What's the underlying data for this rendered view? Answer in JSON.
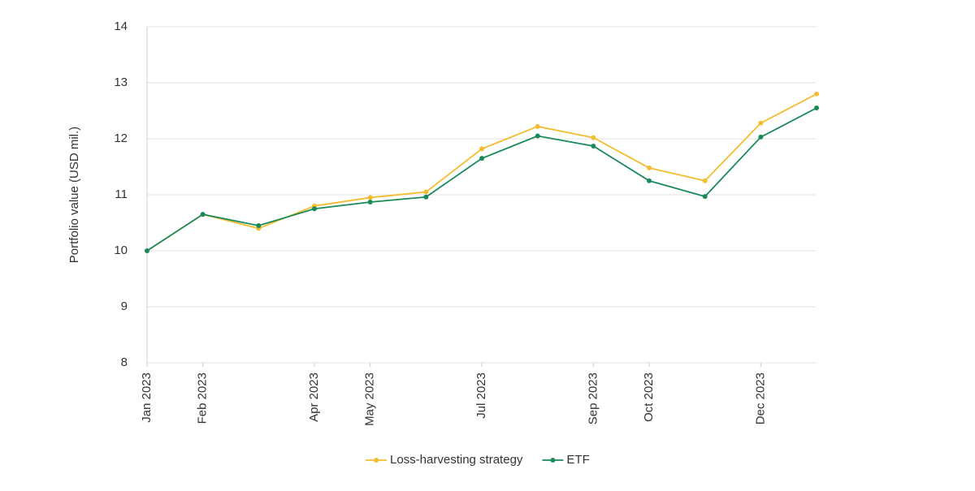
{
  "chart_data": {
    "type": "line",
    "y_label": "Portfolio value (USD mil.)",
    "x": [
      "2023-01",
      "2023-02",
      "2023-03",
      "2023-04",
      "2023-05",
      "2023-06",
      "2023-07",
      "2023-08",
      "2023-09",
      "2023-10",
      "2023-11",
      "2023-12",
      "2024-01"
    ],
    "series": [
      {
        "name": "Loss-harvesting strategy",
        "color": "#f3bd2f",
        "values": [
          10.0,
          10.65,
          10.4,
          10.8,
          10.95,
          11.05,
          11.82,
          12.22,
          12.02,
          11.48,
          11.25,
          12.28,
          12.8
        ]
      },
      {
        "name": "ETF",
        "color": "#1a8a5a",
        "values": [
          10.0,
          10.65,
          10.45,
          10.75,
          10.87,
          10.96,
          11.65,
          12.05,
          11.87,
          11.25,
          10.97,
          12.03,
          12.55
        ]
      }
    ],
    "xlim": [
      "2023-01",
      "2024-01"
    ],
    "xticks": [
      {
        "value": "2023-01",
        "label": "Jan 2023"
      },
      {
        "value": "2023-02",
        "label": "Feb 2023"
      },
      {
        "value": "2023-04",
        "label": "Apr 2023"
      },
      {
        "value": "2023-05",
        "label": "May 2023"
      },
      {
        "value": "2023-07",
        "label": "Jul 2023"
      },
      {
        "value": "2023-09",
        "label": "Sep 2023"
      },
      {
        "value": "2023-10",
        "label": "Oct 2023"
      },
      {
        "value": "2023-12",
        "label": "Dec 2023"
      }
    ],
    "ylim": [
      8,
      14
    ],
    "yticks": [
      8,
      9,
      10,
      11,
      12,
      13,
      14
    ],
    "grid": true,
    "legend": "bottom"
  }
}
